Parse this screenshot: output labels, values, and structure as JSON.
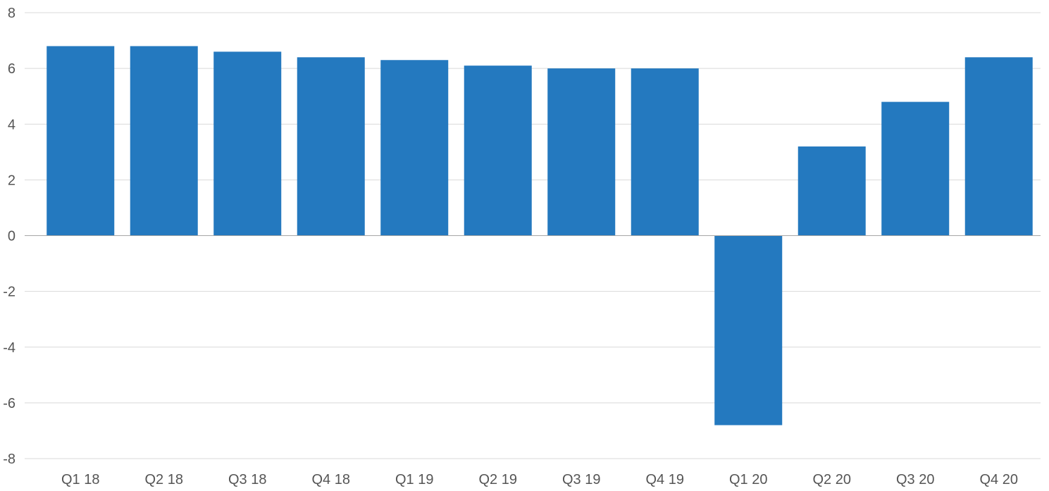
{
  "chart_data": {
    "type": "bar",
    "title": "",
    "xlabel": "",
    "ylabel": "",
    "categories": [
      "Q1 18",
      "Q2 18",
      "Q3 18",
      "Q4 18",
      "Q1 19",
      "Q2 19",
      "Q3 19",
      "Q4 19",
      "Q1 20",
      "Q2 20",
      "Q3 20",
      "Q4 20"
    ],
    "values": [
      6.8,
      6.8,
      6.6,
      6.4,
      6.3,
      6.1,
      6.0,
      6.0,
      -6.8,
      3.2,
      4.8,
      6.4
    ],
    "ylim": [
      -8,
      8
    ],
    "yticks": [
      "-8",
      "-6",
      "-4",
      "-2",
      "0",
      "2",
      "4",
      "6",
      "8"
    ],
    "grid": true,
    "legend": "none",
    "bar_color": "#2479bf",
    "grid_color": "#d9d9d9",
    "axis_color": "#a6a6a6"
  }
}
